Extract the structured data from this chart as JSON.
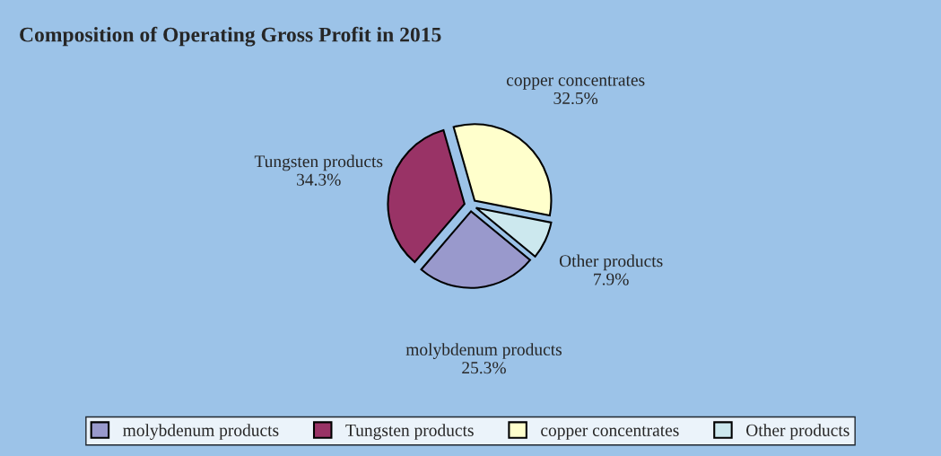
{
  "chart_data": {
    "type": "pie",
    "title": "Composition of Operating Gross Profit in 2015",
    "categories": [
      "molybdenum products",
      "Tungsten products",
      "copper concentrates",
      "Other products"
    ],
    "values": [
      25.3,
      34.3,
      32.5,
      7.9
    ],
    "value_labels": [
      "25.3%",
      "34.3%",
      "32.5%",
      "7.9%"
    ],
    "colors": [
      "#9999cc",
      "#993366",
      "#ffffcc",
      "#cce8ee"
    ],
    "legend": "bottom"
  }
}
